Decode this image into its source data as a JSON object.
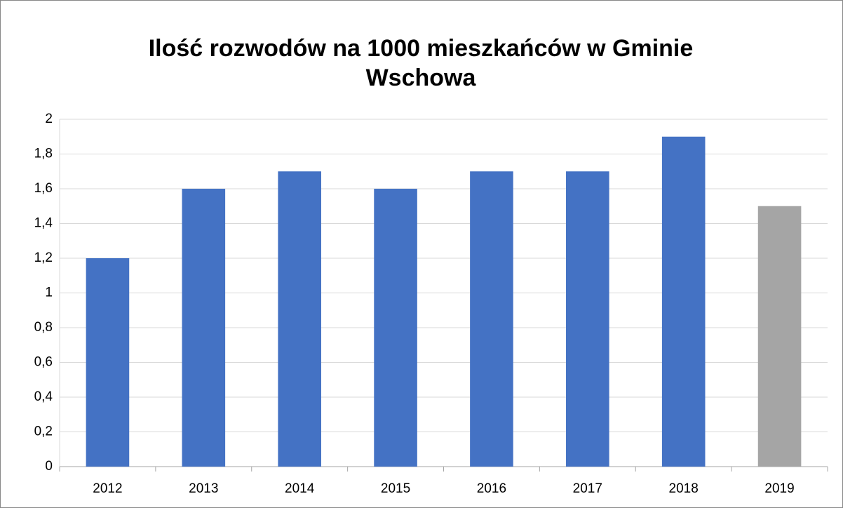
{
  "chart_data": {
    "type": "bar",
    "title": "Ilość rozwodów na 1000 mieszkańców w Gminie Wschowa",
    "categories": [
      "2012",
      "2013",
      "2014",
      "2015",
      "2016",
      "2017",
      "2018",
      "2019"
    ],
    "values": [
      1.2,
      1.6,
      1.7,
      1.6,
      1.7,
      1.7,
      1.9,
      1.5
    ],
    "colors": [
      "#4472c4",
      "#4472c4",
      "#4472c4",
      "#4472c4",
      "#4472c4",
      "#4472c4",
      "#4472c4",
      "#a5a5a5"
    ],
    "ylim": [
      0,
      2
    ],
    "yticks": [
      0,
      {
        "value": 0.2,
        "label": "0,2"
      },
      {
        "value": 0.4,
        "label": "0,4"
      },
      {
        "value": 0.6,
        "label": "0,6"
      },
      {
        "value": 0.8,
        "label": "0,8"
      },
      1,
      {
        "value": 1.2,
        "label": "1,2"
      },
      {
        "value": 1.4,
        "label": "1,4"
      },
      {
        "value": 1.6,
        "label": "1,6"
      },
      {
        "value": 1.8,
        "label": "1,8"
      },
      2
    ],
    "grid": true
  }
}
